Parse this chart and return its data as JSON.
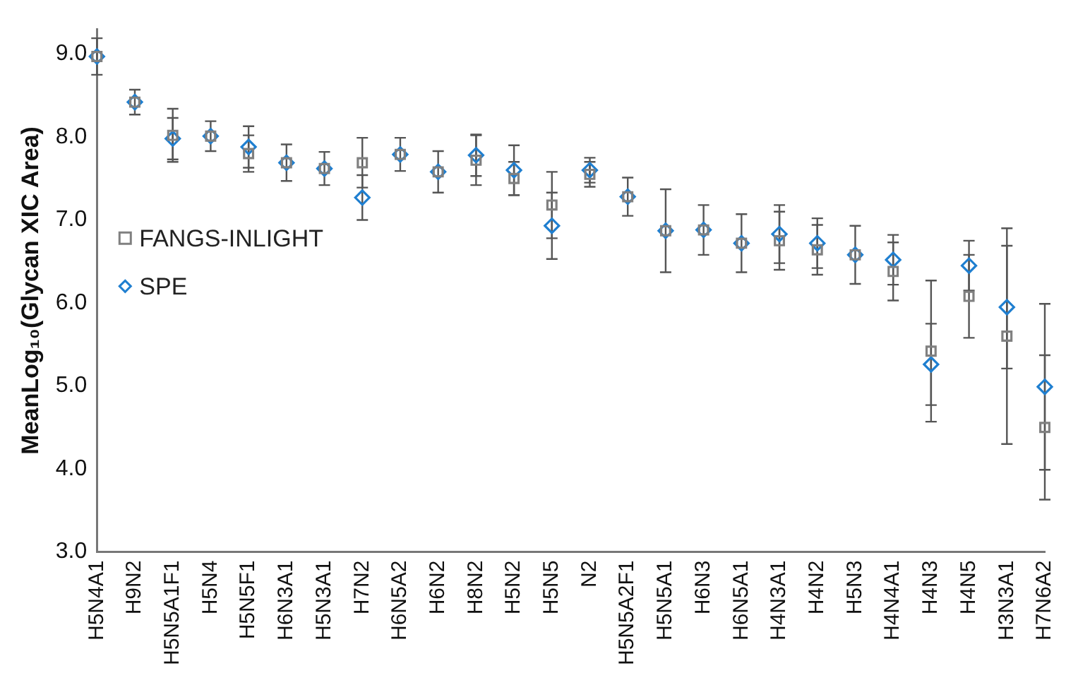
{
  "chart_data": {
    "type": "scatter",
    "ylabel": "MeanLog₁₀(Glycan XIC Area)",
    "categories": [
      "H5N4A1",
      "H9N2",
      "H5N5A1F1",
      "H5N4",
      "H5N5F1",
      "H6N3A1",
      "H5N3A1",
      "H7N2",
      "H6N5A2",
      "H6N2",
      "H8N2",
      "H5N2",
      "H5N5",
      "N2",
      "H5N5A2F1",
      "H5N5A1",
      "H6N3",
      "H6N5A1",
      "H4N3A1",
      "H4N2",
      "H5N3",
      "H4N4A1",
      "H4N3",
      "H4N5",
      "H3N3A1",
      "H7N6A2"
    ],
    "series": [
      {
        "name": "FANGS-INLIGHT",
        "color": "#808080",
        "marker": "square",
        "values": [
          8.97,
          8.42,
          8.02,
          8.01,
          7.8,
          7.69,
          7.62,
          7.69,
          7.79,
          7.58,
          7.72,
          7.5,
          7.18,
          7.55,
          7.28,
          6.87,
          6.88,
          6.72,
          6.75,
          6.64,
          6.58,
          6.38,
          5.42,
          6.08,
          5.6,
          4.5
        ],
        "errors": [
          0.22,
          0.15,
          0.32,
          0.18,
          0.22,
          0.22,
          0.2,
          0.3,
          0.2,
          0.25,
          0.3,
          0.2,
          0.4,
          0.15,
          0.23,
          0.5,
          0.3,
          0.35,
          0.35,
          0.3,
          0.35,
          0.35,
          0.85,
          0.5,
          1.3,
          0.87
        ]
      },
      {
        "name": "SPE",
        "color": "#1f7fd0",
        "marker": "diamond",
        "values": [
          8.97,
          8.42,
          7.98,
          8.01,
          7.88,
          7.69,
          7.62,
          7.27,
          7.79,
          7.58,
          7.78,
          7.6,
          6.93,
          7.6,
          7.28,
          6.87,
          6.88,
          6.72,
          6.83,
          6.72,
          6.58,
          6.52,
          5.26,
          6.45,
          5.95,
          4.99
        ],
        "errors": [
          0.22,
          0.15,
          0.25,
          0.18,
          0.25,
          0.22,
          0.2,
          0.27,
          0.2,
          0.25,
          0.25,
          0.3,
          0.4,
          0.15,
          0.23,
          0.5,
          0.3,
          0.35,
          0.35,
          0.3,
          0.35,
          0.3,
          0.49,
          0.3,
          0.74,
          1.0
        ]
      }
    ],
    "ylim": [
      3,
      9.3
    ],
    "yticks": [
      {
        "value": 3,
        "label": "3.0"
      },
      {
        "value": 4,
        "label": "4.0"
      },
      {
        "value": 5,
        "label": "5.0"
      },
      {
        "value": 6,
        "label": "6.0"
      },
      {
        "value": 7,
        "label": "7.0"
      },
      {
        "value": 8,
        "label": "8.0"
      },
      {
        "value": 9,
        "label": "9.0"
      }
    ],
    "grid": false,
    "legend": "left"
  }
}
